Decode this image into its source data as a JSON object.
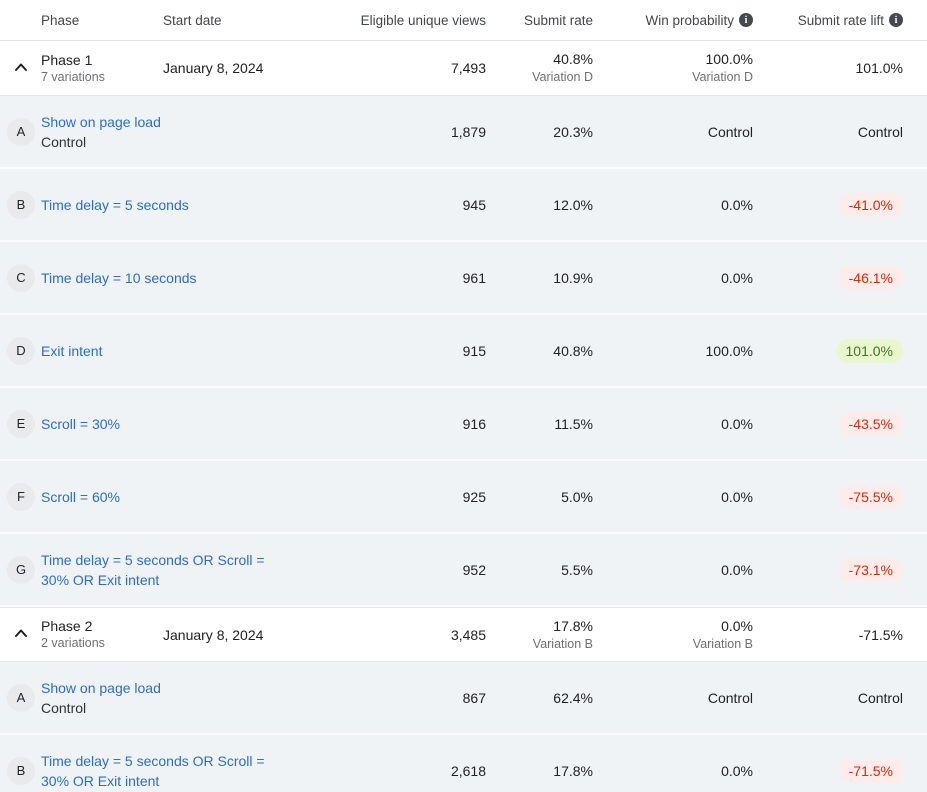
{
  "colors": {
    "link_blue": "#2c6ecb",
    "row_background": "#eff3f5",
    "negative_text": "#d72c0d",
    "negative_background": "#fdecea",
    "positive_text": "#3d7a1d",
    "positive_background": "#e9f7cd",
    "badge_background": "#e8eaec",
    "muted_text": "#6d7175"
  },
  "header": {
    "columns": {
      "phase": "Phase",
      "start_date": "Start date",
      "views": "Eligible unique views",
      "submit_rate": "Submit rate",
      "win_probability": "Win probability",
      "submit_rate_lift": "Submit rate lift"
    },
    "info_icon_glyph": "i"
  },
  "rows": [
    {
      "type": "phase",
      "name": "Phase 1",
      "subtitle": "7 variations",
      "start_date": "January 8, 2024",
      "views": "7,493",
      "submit_rate": "40.8%",
      "submit_rate_note": "Variation D",
      "win_probability": "100.0%",
      "win_probability_note": "Variation D",
      "lift": "101.0%",
      "lift_style": "plain"
    },
    {
      "type": "variation",
      "badge": "A",
      "label": "Show on page load",
      "sublabel": "Control",
      "views": "1,879",
      "submit_rate": "20.3%",
      "win_probability": "Control",
      "lift": "Control",
      "lift_style": "plain"
    },
    {
      "type": "variation",
      "badge": "B",
      "label": "Time delay = 5 seconds",
      "sublabel": "",
      "views": "945",
      "submit_rate": "12.0%",
      "win_probability": "0.0%",
      "lift": "-41.0%",
      "lift_style": "negative"
    },
    {
      "type": "variation",
      "badge": "C",
      "label": "Time delay = 10 seconds",
      "sublabel": "",
      "views": "961",
      "submit_rate": "10.9%",
      "win_probability": "0.0%",
      "lift": "-46.1%",
      "lift_style": "negative"
    },
    {
      "type": "variation",
      "badge": "D",
      "label": "Exit intent",
      "sublabel": "",
      "views": "915",
      "submit_rate": "40.8%",
      "win_probability": "100.0%",
      "lift": "101.0%",
      "lift_style": "positive"
    },
    {
      "type": "variation",
      "badge": "E",
      "label": "Scroll = 30%",
      "sublabel": "",
      "views": "916",
      "submit_rate": "11.5%",
      "win_probability": "0.0%",
      "lift": "-43.5%",
      "lift_style": "negative"
    },
    {
      "type": "variation",
      "badge": "F",
      "label": "Scroll = 60%",
      "sublabel": "",
      "views": "925",
      "submit_rate": "5.0%",
      "win_probability": "0.0%",
      "lift": "-75.5%",
      "lift_style": "negative"
    },
    {
      "type": "variation",
      "badge": "G",
      "label": "Time delay = 5 seconds OR Scroll = 30% OR Exit intent",
      "sublabel": "",
      "views": "952",
      "submit_rate": "5.5%",
      "win_probability": "0.0%",
      "lift": "-73.1%",
      "lift_style": "negative"
    },
    {
      "type": "phase",
      "name": "Phase 2",
      "subtitle": "2 variations",
      "start_date": "January 8, 2024",
      "views": "3,485",
      "submit_rate": "17.8%",
      "submit_rate_note": "Variation B",
      "win_probability": "0.0%",
      "win_probability_note": "Variation B",
      "lift": "-71.5%",
      "lift_style": "plain"
    },
    {
      "type": "variation",
      "badge": "A",
      "label": "Show on page load",
      "sublabel": "Control",
      "views": "867",
      "submit_rate": "62.4%",
      "win_probability": "Control",
      "lift": "Control",
      "lift_style": "plain"
    },
    {
      "type": "variation",
      "badge": "B",
      "label": "Time delay = 5 seconds OR Scroll = 30% OR Exit intent",
      "sublabel": "",
      "views": "2,618",
      "submit_rate": "17.8%",
      "win_probability": "0.0%",
      "lift": "-71.5%",
      "lift_style": "negative"
    }
  ]
}
